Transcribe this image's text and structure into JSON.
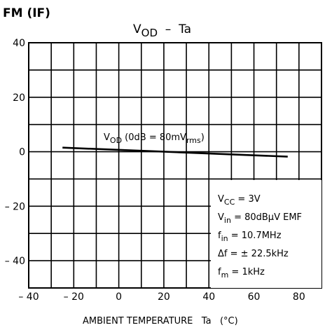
{
  "header": {
    "label": "FM (IF)"
  },
  "chart_data": {
    "type": "line",
    "title": {
      "main": "V",
      "sub": "OD",
      "rest": "  –  Ta"
    },
    "xlabel": "AMBIENT TEMPERATURE   Ta   (°C)",
    "ylabel": "",
    "xlim": [
      -40,
      90
    ],
    "ylim": [
      -50,
      40
    ],
    "x_ticks": [
      -40,
      -20,
      0,
      20,
      40,
      60,
      80
    ],
    "x_tick_labels": [
      "– 40",
      "– 20",
      "0",
      "20",
      "40",
      "60",
      "80"
    ],
    "y_ticks": [
      40,
      20,
      0,
      -20,
      -40
    ],
    "y_tick_labels": [
      "40",
      "20",
      "0",
      "– 20",
      "– 40"
    ],
    "grid": true,
    "series": [
      {
        "name": "VOD (0dB = 80mVrms)",
        "x": [
          -25,
          75
        ],
        "y": [
          1.5,
          -1.8
        ]
      }
    ],
    "series_label": {
      "main": "V",
      "sub": "OD",
      "mid": " (0dB = 80mV",
      "sub2": "rms",
      "end": ")"
    },
    "conditions": [
      {
        "main": "V",
        "sub": "CC",
        "rest": " = 3V"
      },
      {
        "main": "V",
        "sub": "in",
        "rest": " = 80dBµV  EMF"
      },
      {
        "main": "f",
        "sub": "in",
        "rest": " = 10.7MHz"
      },
      {
        "main": "Δf",
        "sub": "",
        "rest": " = ± 22.5kHz"
      },
      {
        "main": "f",
        "sub": "m",
        "rest": " = 1kHz"
      }
    ]
  }
}
